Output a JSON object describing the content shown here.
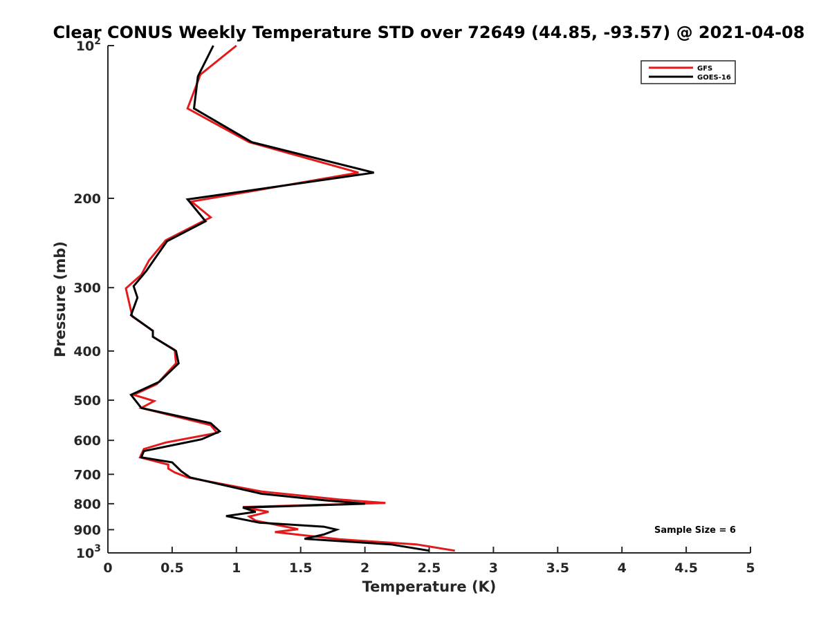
{
  "chart_data": {
    "type": "line",
    "title": "Clear CONUS Weekly Temperature STD over 72649 (44.85, -93.57) @ 2021-04-08",
    "xlabel": "Temperature (K)",
    "ylabel": "Pressure (mb)",
    "xlim": [
      0,
      5
    ],
    "ylim": [
      100,
      1000
    ],
    "y_scale": "log",
    "y_reversed": true,
    "x_ticks": [
      "0",
      "0.5",
      "1",
      "1.5",
      "2",
      "2.5",
      "3",
      "3.5",
      "4",
      "4.5",
      "5"
    ],
    "y_ticks": [
      {
        "value": 100,
        "label": "10",
        "sup": "2"
      },
      {
        "value": 200,
        "label": "200",
        "sup": ""
      },
      {
        "value": 300,
        "label": "300",
        "sup": ""
      },
      {
        "value": 400,
        "label": "400",
        "sup": ""
      },
      {
        "value": 500,
        "label": "500",
        "sup": ""
      },
      {
        "value": 600,
        "label": "600",
        "sup": ""
      },
      {
        "value": 700,
        "label": "700",
        "sup": ""
      },
      {
        "value": 800,
        "label": "800",
        "sup": ""
      },
      {
        "value": 900,
        "label": "900",
        "sup": ""
      },
      {
        "value": 1000,
        "label": "10",
        "sup": "3"
      }
    ],
    "grid": false,
    "legend_position": "top-right",
    "annotation": "Sample Size = 6",
    "series": [
      {
        "name": "GFS",
        "color": "#e31a1c",
        "points": [
          [
            1.0,
            100
          ],
          [
            0.72,
            114
          ],
          [
            0.62,
            133
          ],
          [
            1.1,
            155
          ],
          [
            1.95,
            178
          ],
          [
            0.65,
            203
          ],
          [
            0.8,
            218
          ],
          [
            0.45,
            242
          ],
          [
            0.32,
            265
          ],
          [
            0.26,
            283
          ],
          [
            0.14,
            301
          ],
          [
            0.19,
            342
          ],
          [
            0.35,
            365
          ],
          [
            0.35,
            375
          ],
          [
            0.52,
            398
          ],
          [
            0.53,
            423
          ],
          [
            0.38,
            465
          ],
          [
            0.2,
            488
          ],
          [
            0.36,
            502
          ],
          [
            0.26,
            518
          ],
          [
            0.8,
            560
          ],
          [
            0.85,
            580
          ],
          [
            0.45,
            606
          ],
          [
            0.28,
            624
          ],
          [
            0.25,
            648
          ],
          [
            0.47,
            670
          ],
          [
            0.47,
            682
          ],
          [
            0.52,
            694
          ],
          [
            0.62,
            710
          ],
          [
            1.2,
            757
          ],
          [
            1.8,
            785
          ],
          [
            2.16,
            797
          ],
          [
            1.05,
            812
          ],
          [
            1.25,
            830
          ],
          [
            1.1,
            848
          ],
          [
            1.15,
            864
          ],
          [
            1.48,
            898
          ],
          [
            1.3,
            910
          ],
          [
            1.8,
            940
          ],
          [
            2.4,
            962
          ],
          [
            2.7,
            990
          ]
        ]
      },
      {
        "name": "GOES-16",
        "color": "#000000",
        "points": [
          [
            0.82,
            100
          ],
          [
            0.7,
            115
          ],
          [
            0.67,
            133
          ],
          [
            1.12,
            155
          ],
          [
            2.07,
            178
          ],
          [
            0.62,
            201
          ],
          [
            0.76,
            222
          ],
          [
            0.46,
            243
          ],
          [
            0.37,
            262
          ],
          [
            0.3,
            278
          ],
          [
            0.2,
            298
          ],
          [
            0.23,
            314
          ],
          [
            0.18,
            340
          ],
          [
            0.35,
            365
          ],
          [
            0.35,
            375
          ],
          [
            0.53,
            400
          ],
          [
            0.55,
            423
          ],
          [
            0.4,
            460
          ],
          [
            0.18,
            488
          ],
          [
            0.26,
            518
          ],
          [
            0.8,
            555
          ],
          [
            0.87,
            576
          ],
          [
            0.73,
            597
          ],
          [
            0.28,
            630
          ],
          [
            0.26,
            648
          ],
          [
            0.5,
            663
          ],
          [
            0.57,
            690
          ],
          [
            0.64,
            710
          ],
          [
            1.2,
            765
          ],
          [
            1.7,
            788
          ],
          [
            2.0,
            800
          ],
          [
            1.05,
            814
          ],
          [
            1.15,
            830
          ],
          [
            0.92,
            846
          ],
          [
            1.18,
            872
          ],
          [
            1.68,
            888
          ],
          [
            1.78,
            900
          ],
          [
            1.68,
            920
          ],
          [
            1.53,
            938
          ],
          [
            2.2,
            962
          ],
          [
            2.5,
            990
          ]
        ]
      }
    ]
  }
}
